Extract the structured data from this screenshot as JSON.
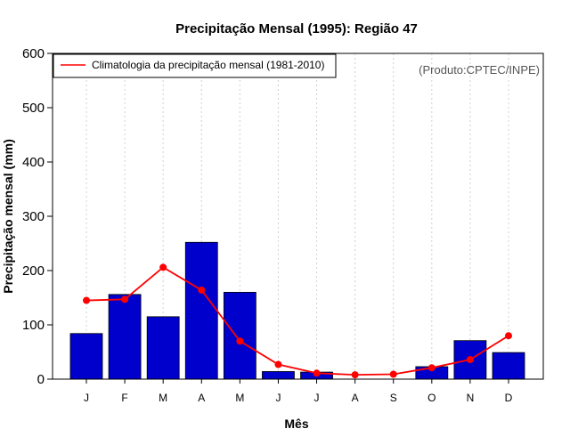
{
  "chart_data": {
    "type": "bar",
    "title": "Precipitação Mensal (1995): Região 47",
    "xlabel": "Mês",
    "ylabel": "Precipitação mensal (mm)",
    "categories": [
      "J",
      "F",
      "M",
      "A",
      "M",
      "J",
      "J",
      "A",
      "S",
      "O",
      "N",
      "D"
    ],
    "ylim": [
      0,
      600
    ],
    "yticks": [
      0,
      100,
      200,
      300,
      400,
      500,
      600
    ],
    "series": [
      {
        "name": "Precipitação mensal (1995)",
        "kind": "bar",
        "color": "#0000cc",
        "values": [
          84,
          156,
          115,
          252,
          160,
          14,
          13,
          0,
          0,
          23,
          71,
          49
        ]
      },
      {
        "name": "Climatologia da precipitação mensal (1981-2010)",
        "kind": "line",
        "color": "#ff0000",
        "values": [
          145,
          147,
          206,
          164,
          70,
          27,
          11,
          8,
          9,
          21,
          36,
          80
        ]
      }
    ],
    "legend": {
      "position": "top-left",
      "entries": [
        "Climatologia da precipitação mensal (1981-2010)"
      ]
    },
    "grid": "vertical-dotted",
    "credit": "(Produto:CPTEC/INPE)"
  }
}
